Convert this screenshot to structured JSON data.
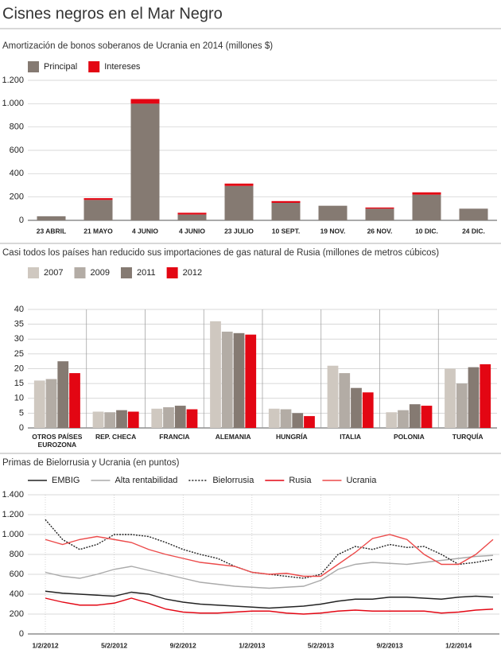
{
  "title": "Cisnes negros en el Mar Negro",
  "chart_data": [
    {
      "type": "bar",
      "stacked": true,
      "title": "Amortización de bonos soberanos de Ucrania en 2014 (millones $)",
      "categories": [
        "23 ABRIL",
        "21 MAYO",
        "4 JUNIO",
        "4 JUNIO",
        "23 JULIO",
        "10 SEPT.",
        "19 NOV.",
        "26 NOV.",
        "10 DIC.",
        "24 DIC."
      ],
      "series": [
        {
          "name": "Principal",
          "color": "#857a72",
          "values": [
            35,
            175,
            1000,
            50,
            295,
            150,
            125,
            100,
            220,
            100
          ]
        },
        {
          "name": "Intereses",
          "color": "#e30613",
          "values": [
            0,
            15,
            40,
            15,
            20,
            15,
            0,
            10,
            20,
            0
          ]
        }
      ],
      "ylim": [
        0,
        1200
      ],
      "yticks": [
        0,
        200,
        400,
        600,
        800,
        {
          "value": 1000,
          "label": "1.000"
        },
        {
          "value": 1200,
          "label": "1.200"
        }
      ],
      "grid": true
    },
    {
      "type": "bar",
      "stacked": false,
      "title": "Casi todos los países han reducido sus importaciones de gas natural de Rusia (millones de metros cúbicos)",
      "categories": [
        "OTROS PAÍSES EUROZONA",
        "REP. CHECA",
        "FRANCIA",
        "ALEMANIA",
        "HUNGRÍA",
        "ITALIA",
        "POLONIA",
        "TURQUÍA"
      ],
      "series": [
        {
          "name": "2007",
          "color": "#cfc8c0",
          "values": [
            16,
            5.5,
            6.5,
            36,
            6.5,
            21,
            5.3,
            20
          ]
        },
        {
          "name": "2009",
          "color": "#b3aca5",
          "values": [
            16.5,
            5.3,
            7,
            32.5,
            6.3,
            18.5,
            6,
            15
          ]
        },
        {
          "name": "2011",
          "color": "#857a72",
          "values": [
            22.5,
            6,
            7.5,
            32,
            5,
            13.5,
            8,
            20.5
          ]
        },
        {
          "name": "2012",
          "color": "#e30613",
          "values": [
            18.5,
            5.5,
            6.3,
            31.5,
            4,
            12,
            7.5,
            21.5
          ]
        }
      ],
      "ylim": [
        0,
        40
      ],
      "yticks": [
        0,
        5,
        10,
        15,
        20,
        25,
        30,
        35,
        40
      ],
      "grid": true
    },
    {
      "type": "line",
      "title": "Primas de Bielorrusia y Ucrania (en puntos)",
      "categories": [
        "1/2/2012",
        null,
        null,
        null,
        "5/2/2012",
        null,
        null,
        null,
        "9/2/2012",
        null,
        null,
        null,
        "1/2/2013",
        null,
        null,
        null,
        "5/2/2013",
        null,
        null,
        null,
        "9/2/2013",
        null,
        null,
        null,
        "1/2/2014",
        null,
        null
      ],
      "series": [
        {
          "name": "EMBIG",
          "color": "#222222",
          "style": "solid",
          "values": [
            430,
            410,
            400,
            390,
            380,
            420,
            400,
            350,
            320,
            300,
            290,
            280,
            270,
            260,
            270,
            280,
            300,
            330,
            350,
            350,
            370,
            370,
            360,
            350,
            370,
            380,
            370
          ]
        },
        {
          "name": "Alta rentabilidad",
          "color": "#aaaaaa",
          "style": "solid",
          "values": [
            620,
            580,
            560,
            600,
            650,
            680,
            640,
            600,
            560,
            520,
            500,
            480,
            470,
            460,
            470,
            480,
            540,
            650,
            700,
            720,
            710,
            700,
            720,
            740,
            760,
            780,
            790
          ]
        },
        {
          "name": "Bielorrusia",
          "color": "#222222",
          "style": "dotted",
          "values": [
            1150,
            950,
            850,
            900,
            1000,
            1000,
            980,
            920,
            850,
            800,
            760,
            680,
            620,
            600,
            580,
            560,
            600,
            800,
            880,
            850,
            900,
            870,
            880,
            800,
            700,
            720,
            750
          ]
        },
        {
          "name": "Rusia",
          "color": "#e30613",
          "style": "solid",
          "values": [
            360,
            320,
            290,
            290,
            310,
            360,
            310,
            250,
            220,
            210,
            210,
            220,
            230,
            230,
            210,
            200,
            210,
            230,
            240,
            230,
            230,
            230,
            230,
            210,
            220,
            240,
            250
          ]
        },
        {
          "name": "Ucrania",
          "color": "#ec4a4a",
          "style": "solid",
          "values": [
            950,
            900,
            950,
            980,
            950,
            920,
            850,
            800,
            760,
            720,
            700,
            680,
            620,
            600,
            610,
            580,
            580,
            700,
            820,
            960,
            1000,
            950,
            800,
            700,
            700,
            800,
            950
          ]
        }
      ],
      "ylim": [
        0,
        1400
      ],
      "yticks": [
        0,
        200,
        400,
        600,
        800,
        {
          "value": 1000,
          "label": "1.000"
        },
        {
          "value": 1200,
          "label": "1.200"
        },
        {
          "value": 1400,
          "label": "1.400"
        }
      ],
      "grid": true
    }
  ]
}
